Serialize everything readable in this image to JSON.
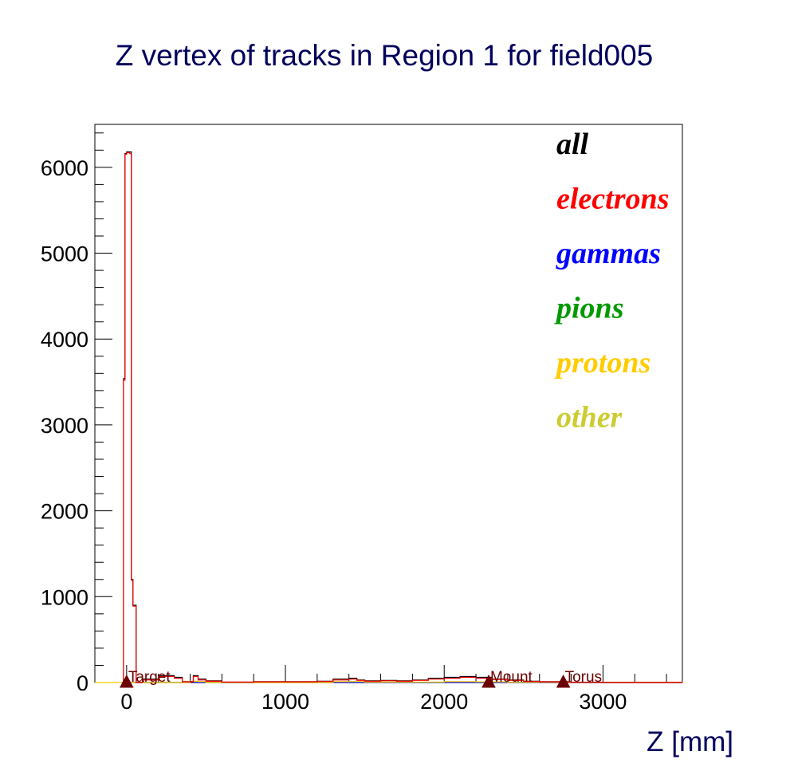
{
  "chart_data": {
    "type": "histogram",
    "title": "Z vertex of tracks in Region 1 for field005",
    "xlabel": "Z [mm]",
    "ylabel": "",
    "xlim": [
      -200,
      3500
    ],
    "ylim": [
      0,
      6500
    ],
    "x_ticks": [
      0,
      1000,
      2000,
      3000
    ],
    "y_ticks": [
      0,
      1000,
      2000,
      3000,
      4000,
      5000,
      6000
    ],
    "grid": false,
    "legend_position": "top-right",
    "series": [
      {
        "name": "all",
        "color": "#000000",
        "points": [
          [
            -30,
            0
          ],
          [
            -20,
            3540
          ],
          [
            -10,
            6160
          ],
          [
            0,
            6180
          ],
          [
            20,
            6180
          ],
          [
            30,
            1200
          ],
          [
            40,
            900
          ],
          [
            60,
            0
          ],
          [
            100,
            40
          ],
          [
            200,
            80
          ],
          [
            300,
            60
          ],
          [
            350,
            10
          ],
          [
            420,
            80
          ],
          [
            450,
            40
          ],
          [
            500,
            20
          ],
          [
            600,
            5
          ],
          [
            800,
            10
          ],
          [
            1000,
            10
          ],
          [
            1200,
            15
          ],
          [
            1300,
            40
          ],
          [
            1400,
            50
          ],
          [
            1450,
            30
          ],
          [
            1500,
            20
          ],
          [
            1600,
            25
          ],
          [
            1700,
            20
          ],
          [
            1800,
            30
          ],
          [
            1900,
            50
          ],
          [
            2000,
            60
          ],
          [
            2100,
            70
          ],
          [
            2200,
            60
          ],
          [
            2300,
            40
          ],
          [
            2400,
            30
          ],
          [
            2500,
            15
          ],
          [
            2600,
            10
          ],
          [
            2800,
            3
          ],
          [
            3000,
            0
          ],
          [
            3500,
            0
          ]
        ]
      },
      {
        "name": "electrons",
        "color": "#ff0000",
        "points": [
          [
            -30,
            0
          ],
          [
            -20,
            3520
          ],
          [
            -10,
            6150
          ],
          [
            0,
            6170
          ],
          [
            20,
            6160
          ],
          [
            30,
            1190
          ],
          [
            40,
            890
          ],
          [
            60,
            0
          ],
          [
            100,
            30
          ],
          [
            200,
            70
          ],
          [
            300,
            50
          ],
          [
            350,
            8
          ],
          [
            420,
            70
          ],
          [
            450,
            30
          ],
          [
            500,
            15
          ],
          [
            600,
            5
          ],
          [
            800,
            8
          ],
          [
            1000,
            8
          ],
          [
            1200,
            12
          ],
          [
            1300,
            30
          ],
          [
            1400,
            40
          ],
          [
            1450,
            25
          ],
          [
            1500,
            15
          ],
          [
            1600,
            20
          ],
          [
            1700,
            15
          ],
          [
            1800,
            25
          ],
          [
            1900,
            40
          ],
          [
            2000,
            50
          ],
          [
            2100,
            60
          ],
          [
            2200,
            50
          ],
          [
            2300,
            35
          ],
          [
            2400,
            25
          ],
          [
            2500,
            12
          ],
          [
            2600,
            8
          ],
          [
            2800,
            2
          ],
          [
            3000,
            0
          ],
          [
            3500,
            0
          ]
        ]
      },
      {
        "name": "gammas",
        "color": "#0000ff",
        "points": [
          [
            0,
            0
          ],
          [
            3500,
            0
          ]
        ]
      },
      {
        "name": "pions",
        "color": "#009900",
        "points": [
          [
            0,
            0
          ],
          [
            3500,
            0
          ]
        ]
      },
      {
        "name": "protons",
        "color": "#ffcc00",
        "points": [
          [
            -200,
            0
          ],
          [
            300,
            0
          ],
          [
            400,
            15
          ],
          [
            450,
            10
          ],
          [
            500,
            0
          ],
          [
            1200,
            0
          ],
          [
            1300,
            10
          ],
          [
            1400,
            12
          ],
          [
            1500,
            5
          ],
          [
            1900,
            5
          ],
          [
            2000,
            10
          ],
          [
            2200,
            8
          ],
          [
            2400,
            3
          ],
          [
            3500,
            0
          ]
        ]
      },
      {
        "name": "other",
        "color": "#cccc33",
        "points": [
          [
            0,
            0
          ],
          [
            3500,
            0
          ]
        ]
      }
    ],
    "markers": [
      {
        "label": "Target",
        "x": 0,
        "y": 0,
        "color": "#6b0000"
      },
      {
        "label": "Mount",
        "x": 2280,
        "y": 0,
        "color": "#6b0000"
      },
      {
        "label": "Torus",
        "x": 2750,
        "y": 0,
        "color": "#6b0000"
      }
    ]
  },
  "colors": {
    "title": "#00005c",
    "axis_label": "#00005c",
    "frame": "#000000"
  }
}
